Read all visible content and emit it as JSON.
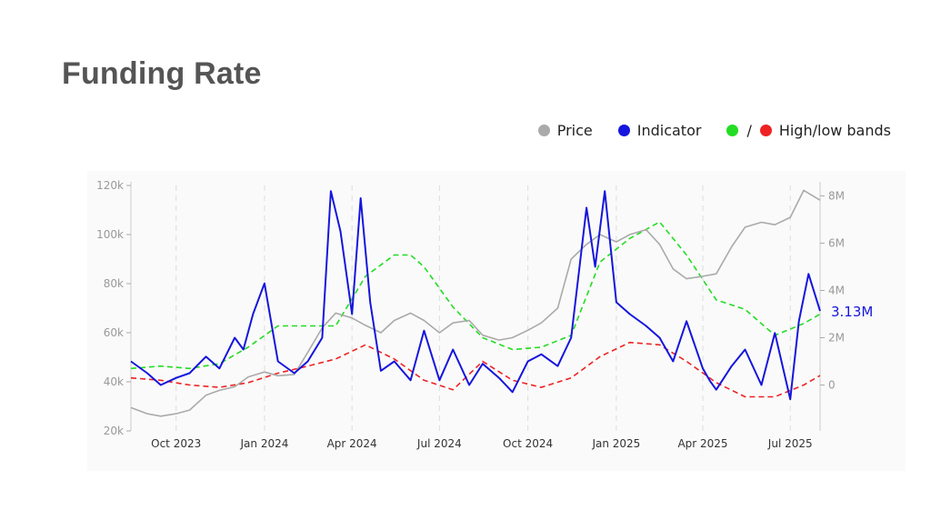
{
  "title": "Funding Rate",
  "legend": [
    {
      "label": "Price",
      "colors": [
        "#aaaaaa"
      ]
    },
    {
      "label": "Indicator",
      "colors": [
        "#1515dd"
      ]
    },
    {
      "label": "High/low bands",
      "colors": [
        "#22dd22",
        "#ee2222"
      ]
    }
  ],
  "chart_data": {
    "type": "line",
    "x_ticks": [
      "Oct 2023",
      "Jan 2024",
      "Apr 2024",
      "Jul 2024",
      "Oct 2024",
      "Jan 2025",
      "Apr 2025",
      "Jul 2025"
    ],
    "x_tick_dates": [
      "2023-10-01",
      "2024-01-01",
      "2024-04-01",
      "2024-07-01",
      "2024-10-01",
      "2025-01-01",
      "2025-04-01",
      "2025-07-01"
    ],
    "x_range": [
      "2023-08-15",
      "2025-08-01"
    ],
    "left_axis": {
      "ticks": [
        "20k",
        "40k",
        "60k",
        "80k",
        "100k",
        "120k"
      ],
      "values": [
        20000,
        40000,
        60000,
        80000,
        100000,
        120000
      ],
      "ylim": [
        20000,
        120000
      ]
    },
    "right_axis": {
      "ticks": [
        "0",
        "2M",
        "4M",
        "6M",
        "8M"
      ],
      "values": [
        0,
        2000000,
        4000000,
        6000000,
        8000000
      ],
      "ylim": [
        -1940000,
        8440000
      ]
    },
    "last_value_label": "3.13M",
    "grid_x": true,
    "series": [
      {
        "name": "Price",
        "axis": "left",
        "color": "#aaaaaa",
        "dash": "solid",
        "x": [
          "2023-08-15",
          "2023-09-01",
          "2023-09-15",
          "2023-10-01",
          "2023-10-15",
          "2023-11-01",
          "2023-11-15",
          "2023-12-01",
          "2023-12-15",
          "2024-01-01",
          "2024-01-15",
          "2024-02-01",
          "2024-02-15",
          "2024-03-01",
          "2024-03-15",
          "2024-04-01",
          "2024-04-15",
          "2024-05-01",
          "2024-05-15",
          "2024-06-01",
          "2024-06-15",
          "2024-07-01",
          "2024-07-15",
          "2024-08-01",
          "2024-08-15",
          "2024-09-01",
          "2024-09-15",
          "2024-10-01",
          "2024-10-15",
          "2024-11-01",
          "2024-11-15",
          "2024-12-01",
          "2024-12-15",
          "2025-01-01",
          "2025-01-15",
          "2025-02-01",
          "2025-02-15",
          "2025-03-01",
          "2025-03-15",
          "2025-04-01",
          "2025-04-15",
          "2025-05-01",
          "2025-05-15",
          "2025-06-01",
          "2025-06-15",
          "2025-07-01",
          "2025-07-15",
          "2025-08-01"
        ],
        "y": [
          29500,
          27000,
          26000,
          27000,
          28500,
          34500,
          36500,
          38000,
          42000,
          44000,
          42500,
          43000,
          52000,
          62000,
          68000,
          66000,
          63000,
          60000,
          65000,
          68000,
          65000,
          60000,
          64000,
          65000,
          59000,
          57000,
          58000,
          61000,
          64000,
          70000,
          90000,
          96000,
          100000,
          97000,
          100000,
          102000,
          96000,
          86000,
          82000,
          83000,
          84000,
          95000,
          103000,
          105000,
          104000,
          107000,
          118000,
          114000
        ]
      },
      {
        "name": "Indicator",
        "axis": "right",
        "color": "#1515dd",
        "dash": "solid",
        "x": [
          "2023-08-15",
          "2023-09-01",
          "2023-09-15",
          "2023-10-01",
          "2023-10-15",
          "2023-11-01",
          "2023-11-15",
          "2023-12-01",
          "2023-12-10",
          "2023-12-20",
          "2024-01-01",
          "2024-01-15",
          "2024-02-01",
          "2024-02-15",
          "2024-03-01",
          "2024-03-10",
          "2024-03-20",
          "2024-04-01",
          "2024-04-10",
          "2024-04-20",
          "2024-05-01",
          "2024-05-15",
          "2024-06-01",
          "2024-06-15",
          "2024-07-01",
          "2024-07-15",
          "2024-08-01",
          "2024-08-15",
          "2024-09-01",
          "2024-09-15",
          "2024-10-01",
          "2024-10-15",
          "2024-11-01",
          "2024-11-15",
          "2024-12-01",
          "2024-12-10",
          "2024-12-20",
          "2025-01-01",
          "2025-01-15",
          "2025-02-01",
          "2025-02-15",
          "2025-03-01",
          "2025-03-15",
          "2025-04-01",
          "2025-04-08",
          "2025-04-15",
          "2025-05-01",
          "2025-05-15",
          "2025-06-01",
          "2025-06-15",
          "2025-07-01",
          "2025-07-10",
          "2025-07-20",
          "2025-08-01"
        ],
        "y": [
          1000000,
          500000,
          0,
          300000,
          500000,
          1200000,
          700000,
          2000000,
          1500000,
          3000000,
          4300000,
          1000000,
          500000,
          1000000,
          2000000,
          8200000,
          6500000,
          3000000,
          7900000,
          3500000,
          600000,
          1000000,
          200000,
          2300000,
          200000,
          1500000,
          0,
          900000,
          300000,
          -300000,
          1000000,
          1300000,
          800000,
          2000000,
          7500000,
          5000000,
          8200000,
          3500000,
          3000000,
          2500000,
          2000000,
          1000000,
          2700000,
          700000,
          200000,
          -200000,
          800000,
          1500000,
          0,
          2200000,
          -600000,
          2700000,
          4700000,
          3130000
        ]
      },
      {
        "name": "High/low bands",
        "axis": "right",
        "color": "#22dd22",
        "dash": "dashed",
        "x": [
          "2023-08-15",
          "2023-09-15",
          "2023-10-15",
          "2023-11-15",
          "2023-12-15",
          "2024-01-15",
          "2024-02-15",
          "2024-03-15",
          "2024-04-15",
          "2024-05-15",
          "2024-06-01",
          "2024-06-15",
          "2024-07-15",
          "2024-08-15",
          "2024-09-15",
          "2024-10-15",
          "2024-11-15",
          "2024-12-15",
          "2025-01-15",
          "2025-02-15",
          "2025-03-15",
          "2025-04-15",
          "2025-05-15",
          "2025-06-15",
          "2025-07-15",
          "2025-08-01"
        ],
        "y": [
          700000,
          800000,
          700000,
          900000,
          1600000,
          2500000,
          2500000,
          2500000,
          4600000,
          5500000,
          5500000,
          5000000,
          3300000,
          2000000,
          1500000,
          1600000,
          2100000,
          5200000,
          6200000,
          6900000,
          5500000,
          3600000,
          3200000,
          2100000,
          2600000,
          3000000
        ]
      },
      {
        "name": "",
        "axis": "right",
        "color": "#ee2222",
        "dash": "dashed",
        "x": [
          "2023-08-15",
          "2023-09-15",
          "2023-10-15",
          "2023-11-15",
          "2023-12-15",
          "2024-01-15",
          "2024-02-15",
          "2024-03-15",
          "2024-04-15",
          "2024-05-15",
          "2024-06-15",
          "2024-07-15",
          "2024-08-15",
          "2024-09-15",
          "2024-10-15",
          "2024-11-15",
          "2024-12-15",
          "2025-01-15",
          "2025-02-15",
          "2025-03-15",
          "2025-04-15",
          "2025-05-15",
          "2025-06-15",
          "2025-07-15",
          "2025-08-01"
        ],
        "y": [
          300000,
          200000,
          0,
          -100000,
          100000,
          500000,
          800000,
          1100000,
          1700000,
          1100000,
          200000,
          -200000,
          1000000,
          200000,
          -100000,
          300000,
          1200000,
          1800000,
          1700000,
          1000000,
          100000,
          -500000,
          -500000,
          0,
          400000
        ]
      }
    ]
  }
}
